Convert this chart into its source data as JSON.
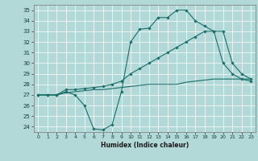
{
  "title": "",
  "xlabel": "Humidex (Indice chaleur)",
  "bg_color": "#b2d8d8",
  "grid_color": "#ffffff",
  "line_color": "#1a6e6a",
  "xlim": [
    -0.5,
    23.5
  ],
  "ylim": [
    23.5,
    35.5
  ],
  "yticks": [
    24,
    25,
    26,
    27,
    28,
    29,
    30,
    31,
    32,
    33,
    34,
    35
  ],
  "xticks": [
    0,
    1,
    2,
    3,
    4,
    5,
    6,
    7,
    8,
    9,
    10,
    11,
    12,
    13,
    14,
    15,
    16,
    17,
    18,
    19,
    20,
    21,
    22,
    23
  ],
  "line1_x": [
    0,
    1,
    2,
    3,
    4,
    5,
    6,
    7,
    8,
    9,
    10,
    11,
    12,
    13,
    14,
    15,
    16,
    17,
    18,
    19,
    20,
    21,
    22,
    23
  ],
  "line1_y": [
    27.0,
    27.0,
    27.0,
    27.3,
    27.0,
    26.0,
    23.8,
    23.7,
    24.2,
    27.3,
    32.0,
    33.2,
    33.3,
    34.3,
    34.3,
    35.0,
    35.0,
    34.0,
    33.5,
    33.0,
    30.0,
    29.0,
    28.5,
    28.3
  ],
  "line2_x": [
    0,
    1,
    2,
    3,
    4,
    5,
    6,
    7,
    8,
    9,
    10,
    11,
    12,
    13,
    14,
    15,
    16,
    17,
    18,
    19,
    20,
    21,
    22,
    23
  ],
  "line2_y": [
    27.0,
    27.0,
    27.0,
    27.5,
    27.5,
    27.6,
    27.7,
    27.8,
    28.0,
    28.3,
    29.0,
    29.5,
    30.0,
    30.5,
    31.0,
    31.5,
    32.0,
    32.5,
    33.0,
    33.0,
    33.0,
    30.0,
    29.0,
    28.5
  ],
  "line3_x": [
    0,
    1,
    2,
    3,
    4,
    5,
    6,
    7,
    8,
    9,
    10,
    11,
    12,
    13,
    14,
    15,
    16,
    17,
    18,
    19,
    20,
    21,
    22,
    23
  ],
  "line3_y": [
    27.0,
    27.0,
    27.0,
    27.2,
    27.3,
    27.4,
    27.5,
    27.5,
    27.6,
    27.7,
    27.8,
    27.9,
    28.0,
    28.0,
    28.0,
    28.0,
    28.2,
    28.3,
    28.4,
    28.5,
    28.5,
    28.5,
    28.5,
    28.5
  ],
  "tick_fontsize": 5,
  "xlabel_fontsize": 5.5,
  "marker": "D",
  "markersize": 1.8,
  "linewidth": 0.8
}
